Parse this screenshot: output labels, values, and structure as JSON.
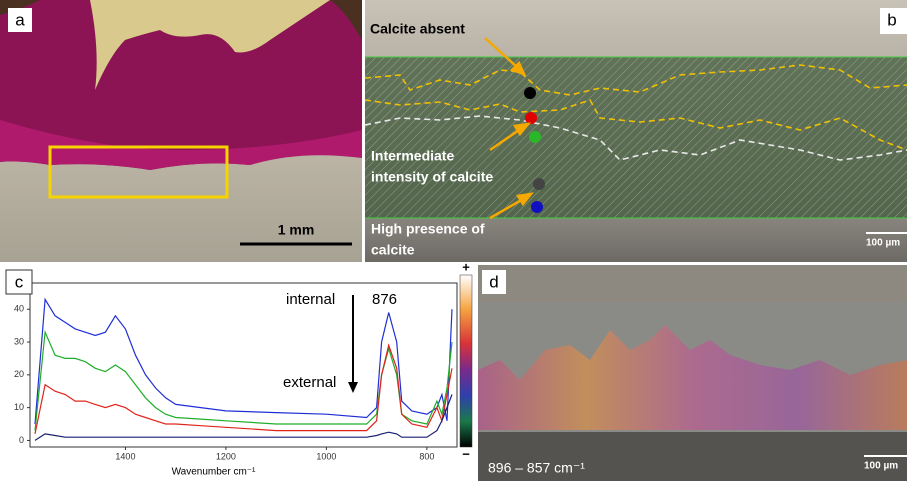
{
  "panels": {
    "a": {
      "label": "a",
      "scale_bar": "1 mm"
    },
    "b": {
      "label": "b",
      "annotations": [
        [
          "Calcite absent"
        ],
        [
          "Intermediate",
          "intensity of calcite"
        ],
        [
          "High presence of",
          "calcite"
        ]
      ],
      "scale_bar": "100 µm"
    },
    "c": {
      "label": "c"
    },
    "d": {
      "label": "d",
      "caption": "896 – 857 cm⁻¹",
      "scale_bar": "100 µm"
    }
  },
  "chart_data": {
    "type": "line",
    "xlabel": "Wavenumber cm⁻¹",
    "x": [
      1580,
      1560,
      1540,
      1520,
      1500,
      1480,
      1460,
      1440,
      1420,
      1400,
      1380,
      1360,
      1340,
      1320,
      1300,
      1250,
      1200,
      1100,
      1000,
      920,
      900,
      890,
      876,
      860,
      850,
      830,
      800,
      780,
      770,
      760,
      750
    ],
    "series": [
      {
        "color": "#1f2fd6",
        "values": [
          5,
          43,
          38,
          36,
          34,
          33,
          32,
          33,
          38,
          34,
          26,
          20,
          16,
          13,
          11,
          10,
          9,
          8.5,
          8,
          7,
          10,
          30,
          39,
          30,
          12,
          9,
          8,
          10,
          14,
          6,
          40
        ]
      },
      {
        "color": "#1fae2a",
        "values": [
          3,
          33,
          26,
          25,
          25,
          24,
          22,
          21,
          23,
          21,
          17,
          13,
          10,
          8,
          7,
          6.5,
          6,
          5,
          5,
          5,
          8,
          20,
          28,
          20,
          8,
          6,
          5,
          12,
          8,
          16,
          30
        ]
      },
      {
        "color": "#e0241c",
        "values": [
          2,
          17,
          15,
          14,
          12,
          12,
          11,
          10,
          11,
          10,
          8,
          7,
          6,
          5,
          5,
          4.5,
          4,
          3,
          3,
          3,
          6,
          20,
          29,
          22,
          8,
          5,
          4,
          10,
          6,
          14,
          22
        ]
      },
      {
        "color": "#1a1f6e",
        "values": [
          0,
          2,
          1.5,
          1,
          1,
          1,
          1,
          1,
          1,
          1,
          1,
          1,
          1,
          1,
          1,
          1,
          1,
          1,
          1,
          1,
          1.5,
          2,
          2.5,
          2,
          1,
          1,
          1,
          3,
          6,
          10,
          14
        ]
      }
    ],
    "xlim": [
      1590,
      740
    ],
    "ylim": [
      -2,
      48
    ],
    "xticks": [
      1400,
      1200,
      1000,
      800
    ],
    "yticks": [
      0,
      10,
      20,
      30,
      40
    ],
    "annotations": [
      "internal",
      "876",
      "external"
    ],
    "colorbar_labels": [
      "+",
      "−"
    ]
  }
}
